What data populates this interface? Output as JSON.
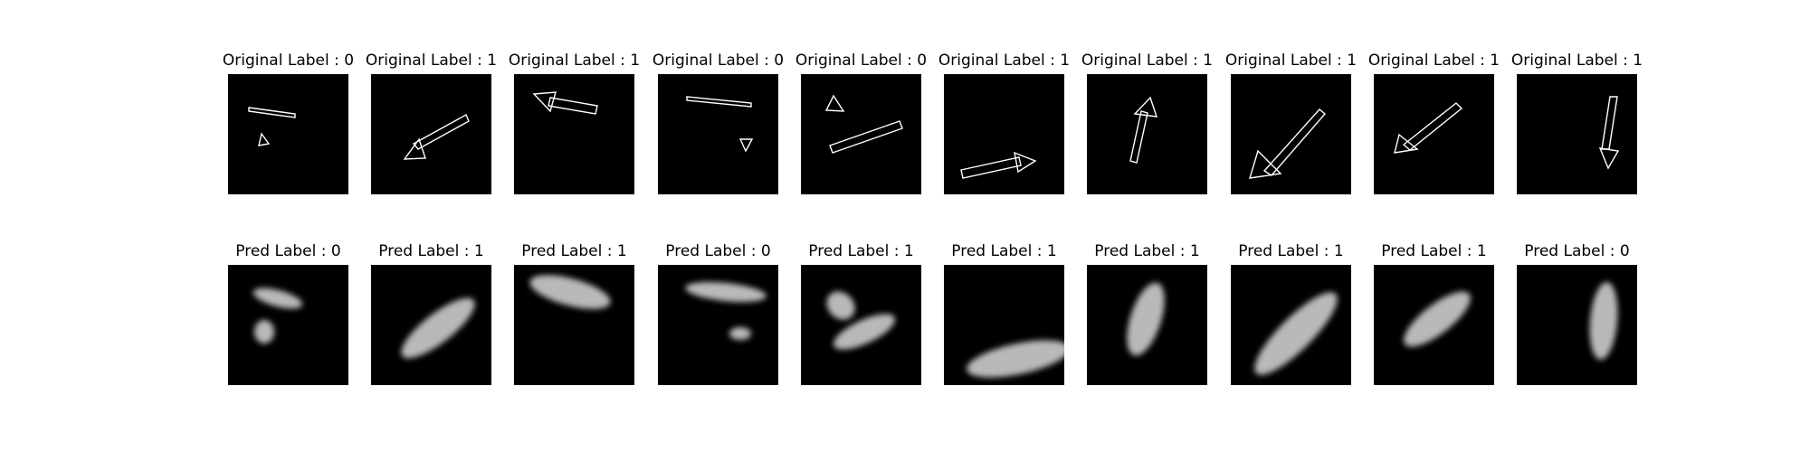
{
  "figure": {
    "rows": [
      {
        "kind": "original",
        "titles": [
          "Original Label : 0",
          "Original Label : 1",
          "Original Label : 1",
          "Original Label : 0",
          "Original Label : 0",
          "Original Label : 1",
          "Original Label : 1",
          "Original Label : 1",
          "Original Label : 1",
          "Original Label : 1"
        ]
      },
      {
        "kind": "prediction",
        "titles": [
          "Pred Label : 0",
          "Pred Label : 1",
          "Pred Label : 1",
          "Pred Label : 0",
          "Pred Label : 1",
          "Pred Label : 1",
          "Pred Label : 1",
          "Pred Label : 1",
          "Pred Label : 1",
          "Pred Label : 0"
        ]
      }
    ],
    "colors": {
      "panel_background": "#000000",
      "outline_stroke": "#ffffff",
      "blob_fill": "#d9d9d9"
    }
  }
}
